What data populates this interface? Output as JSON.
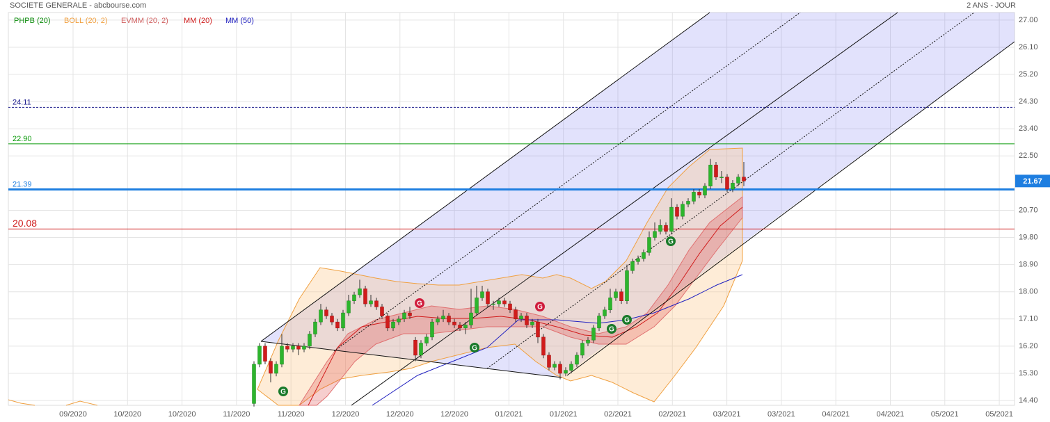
{
  "chart_data": {
    "type": "candlestick",
    "title": "SOCIETE GENERALE - abcbourse.com",
    "period": "2 ANS - JOUR",
    "indicators": [
      {
        "label": "PHPB (20)",
        "color": "#0a8a0a"
      },
      {
        "label": "BOLL (20, 2)",
        "color": "#f0a040"
      },
      {
        "label": "EVMM (20, 2)",
        "color": "#d06060"
      },
      {
        "label": "MM (20)",
        "color": "#d01c1c"
      },
      {
        "label": "MM (50)",
        "color": "#2020c0"
      }
    ],
    "ylim": [
      14.24,
      27.25
    ],
    "yticks": [
      {
        "value": 27,
        "label": "27.00"
      },
      {
        "value": 26.1,
        "label": "26.10"
      },
      {
        "value": 25.2,
        "label": "25.20"
      },
      {
        "value": 24.3,
        "label": "24.30"
      },
      {
        "value": 23.4,
        "label": "23.40"
      },
      {
        "value": 22.5,
        "label": "22.50"
      },
      {
        "value": 20.7,
        "label": "20.70"
      },
      {
        "value": 19.8,
        "label": "19.80"
      },
      {
        "value": 18.9,
        "label": "18.90"
      },
      {
        "value": 18,
        "label": "18.00"
      },
      {
        "value": 17.1,
        "label": "17.10"
      },
      {
        "value": 16.2,
        "label": "16.20"
      },
      {
        "value": 15.3,
        "label": "15.30"
      },
      {
        "value": 14.4,
        "label": "14.40"
      }
    ],
    "xtick_labels": [
      "09/2020",
      "10/2020",
      "10/2020",
      "11/2020",
      "11/2020",
      "12/2020",
      "12/2020",
      "12/2020",
      "01/2021",
      "01/2021",
      "02/2021",
      "02/2021",
      "03/2021",
      "03/2021",
      "04/2021",
      "04/2021",
      "05/2021",
      "05/2021"
    ],
    "levels": [
      {
        "value": 24.11,
        "label": "24.11",
        "color": "#1a1a8c",
        "dashed": true
      },
      {
        "value": 22.9,
        "label": "22.90",
        "color": "#0a9a0a",
        "dashed": false
      },
      {
        "value": 21.39,
        "label": "21.39",
        "color": "#1e7ee0",
        "dashed": false
      },
      {
        "value": 20.08,
        "label": "20.08",
        "color": "#d01c1c",
        "dashed": false
      }
    ],
    "last_price": 21.67,
    "up_color": "#2db52d",
    "down_color": "#d01c1c",
    "signals": [
      {
        "label": "G"
      },
      {
        "label": "G"
      },
      {
        "label": "G"
      },
      {
        "label": "G"
      },
      {
        "label": "G"
      },
      {
        "label": "G"
      },
      {
        "label": "G"
      }
    ],
    "candles": {
      "open": [
        14.3,
        15.6,
        16.2,
        15.7,
        15.3,
        15.6,
        16.2,
        16.1,
        16.2,
        16.1,
        16.2,
        16.6,
        17.0,
        17.4,
        17.2,
        17.0,
        16.8,
        17.3,
        17.7,
        17.9,
        18.1,
        17.6,
        17.7,
        17.5,
        17.2,
        16.8,
        17.0,
        17.1,
        17.3,
        16.4,
        15.9,
        16.3,
        16.5,
        17.0,
        17.1,
        17.2,
        17.0,
        16.9,
        16.8,
        16.9,
        17.3,
        17.8,
        18.0,
        17.6,
        17.6,
        17.7,
        17.6,
        17.4,
        17.1,
        17.2,
        16.9,
        17.0,
        16.5,
        15.9,
        15.5,
        15.6,
        15.3,
        15.4,
        15.6,
        15.9,
        16.3,
        16.4,
        16.8,
        17.2,
        17.4,
        17.8,
        18.0,
        17.7,
        18.7,
        19.0,
        19.1,
        19.3,
        19.8,
        20.0,
        20.2,
        20.0,
        20.8,
        20.5,
        20.9,
        21.0,
        21.3,
        21.2,
        21.5,
        22.2,
        21.8,
        21.8,
        21.4,
        21.6,
        21.8
      ],
      "high": [
        15.7,
        16.3,
        16.3,
        15.8,
        15.7,
        16.6,
        16.3,
        16.3,
        16.3,
        16.3,
        16.7,
        17.1,
        17.6,
        17.5,
        17.3,
        17.1,
        17.4,
        17.9,
        18.0,
        18.4,
        18.2,
        17.9,
        17.8,
        17.6,
        17.3,
        17.1,
        17.2,
        17.4,
        17.5,
        16.5,
        16.4,
        16.6,
        17.1,
        17.2,
        17.4,
        17.3,
        17.1,
        17.0,
        17.0,
        18.1,
        18.2,
        18.2,
        18.1,
        17.7,
        17.8,
        17.8,
        17.7,
        17.5,
        17.3,
        17.3,
        17.1,
        17.1,
        16.6,
        16.0,
        15.7,
        15.7,
        15.5,
        15.7,
        16.0,
        16.4,
        16.5,
        16.9,
        17.3,
        17.5,
        18.1,
        18.1,
        18.1,
        18.9,
        19.1,
        19.2,
        19.4,
        20.0,
        20.3,
        20.4,
        20.3,
        21.1,
        20.9,
        21.0,
        21.1,
        21.4,
        21.4,
        21.6,
        22.4,
        22.3,
        22.0,
        21.9,
        21.7,
        21.9,
        22.3
      ],
      "low": [
        14.2,
        15.5,
        15.6,
        15.0,
        15.2,
        15.5,
        16.0,
        16.0,
        15.9,
        16.0,
        16.1,
        16.5,
        16.9,
        17.1,
        16.9,
        16.7,
        16.7,
        17.2,
        17.6,
        17.8,
        17.5,
        17.5,
        17.4,
        17.1,
        16.7,
        16.7,
        16.9,
        17.0,
        17.1,
        15.7,
        15.8,
        16.2,
        16.4,
        16.9,
        17.0,
        16.9,
        16.8,
        16.7,
        16.6,
        16.8,
        17.2,
        17.7,
        17.5,
        17.4,
        17.5,
        17.5,
        17.3,
        17.0,
        17.0,
        16.8,
        16.8,
        16.3,
        15.8,
        15.4,
        15.4,
        15.1,
        15.2,
        15.3,
        15.5,
        15.8,
        16.2,
        16.3,
        16.7,
        17.1,
        17.3,
        17.7,
        17.6,
        17.6,
        18.6,
        18.9,
        19.0,
        19.2,
        19.7,
        19.9,
        19.9,
        19.9,
        20.4,
        20.4,
        20.8,
        20.9,
        21.1,
        21.1,
        21.4,
        21.7,
        21.6,
        21.3,
        21.3,
        21.5,
        21.5
      ],
      "close": [
        15.6,
        16.2,
        15.7,
        15.3,
        15.6,
        16.2,
        16.1,
        16.2,
        16.1,
        16.2,
        16.6,
        17.0,
        17.4,
        17.2,
        17.0,
        16.8,
        17.3,
        17.7,
        17.9,
        18.1,
        17.6,
        17.7,
        17.5,
        17.2,
        16.8,
        17.0,
        17.1,
        17.3,
        17.2,
        15.9,
        16.3,
        16.5,
        17.0,
        17.1,
        17.2,
        17.0,
        16.9,
        16.8,
        16.9,
        17.3,
        17.8,
        18.0,
        17.6,
        17.6,
        17.7,
        17.6,
        17.4,
        17.1,
        17.2,
        16.9,
        17.0,
        16.5,
        15.9,
        15.5,
        15.6,
        15.3,
        15.4,
        15.6,
        15.9,
        16.3,
        16.4,
        16.8,
        17.2,
        17.4,
        17.8,
        18.0,
        17.7,
        18.7,
        19.0,
        19.1,
        19.3,
        19.8,
        20.0,
        20.2,
        20.0,
        20.8,
        20.5,
        20.9,
        21.0,
        21.3,
        21.2,
        21.5,
        22.2,
        21.8,
        21.8,
        21.4,
        21.6,
        21.8,
        21.67
      ]
    }
  }
}
